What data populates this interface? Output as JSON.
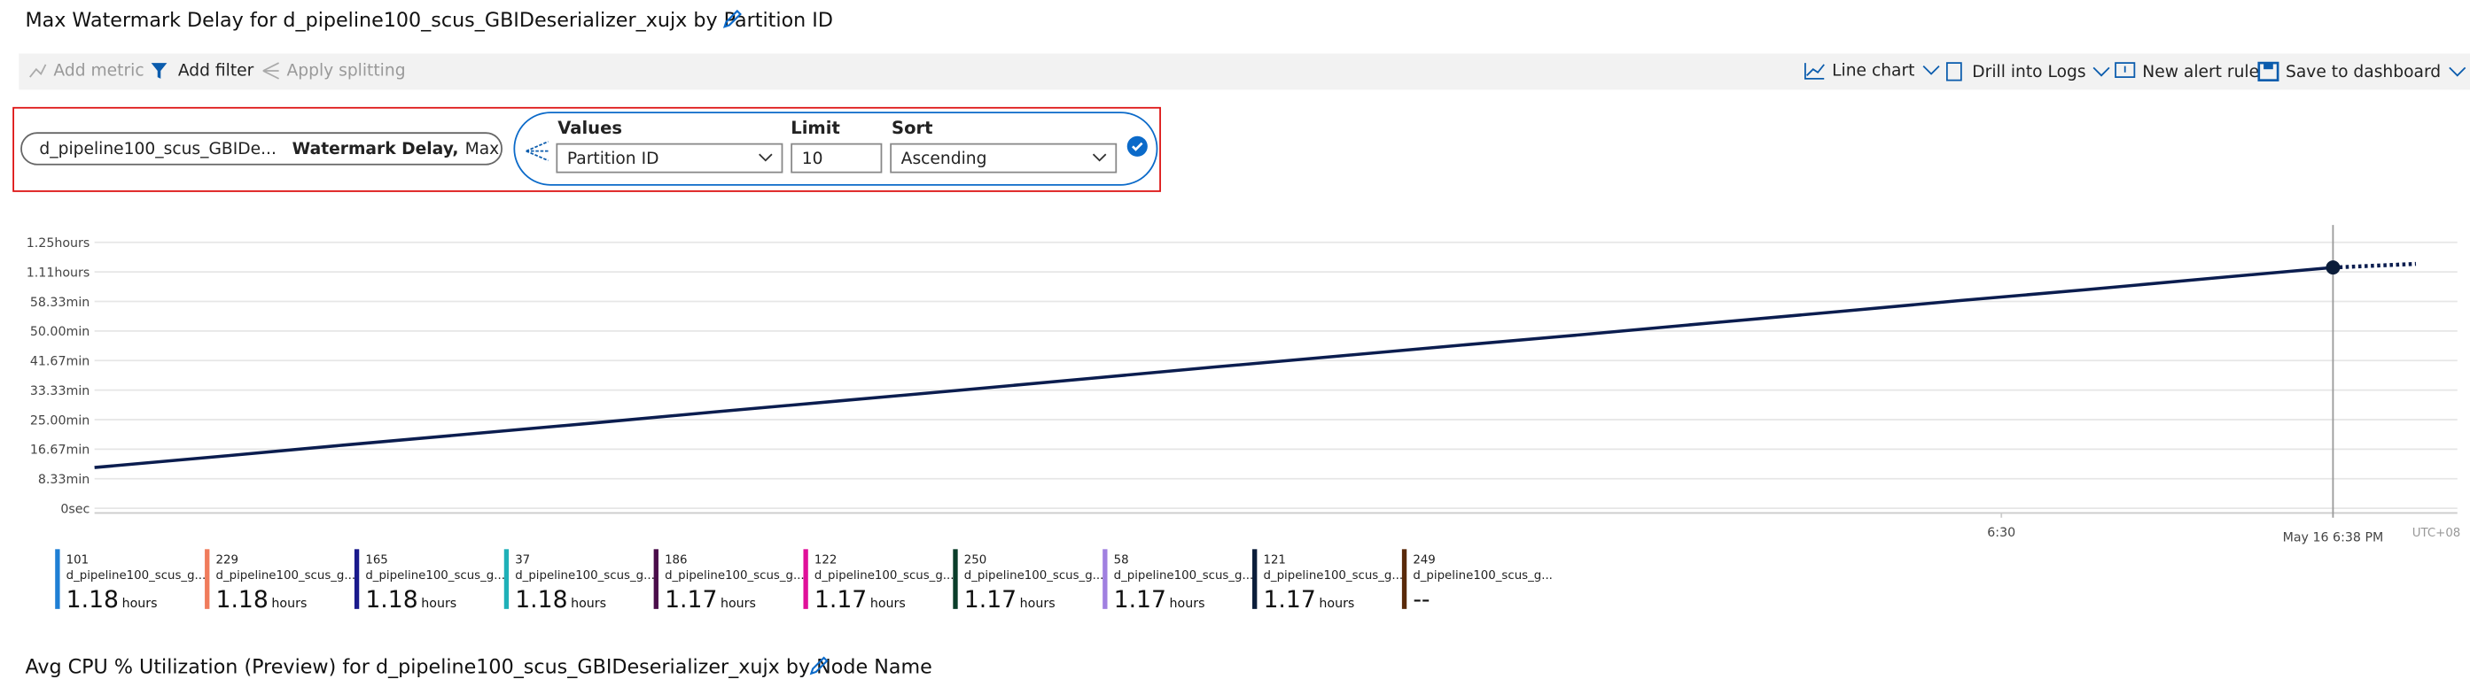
{
  "title": "Max Watermark Delay for d_pipeline100_scus_GBIDeserializer_xujx by Partition ID",
  "toolbar": {
    "left": [
      "Add metric",
      "Add filter",
      "Apply splitting"
    ],
    "right": [
      "Line chart",
      "Drill into Logs",
      "New alert rule",
      "Save to dashboard"
    ]
  },
  "metric": {
    "resource": "d_pipeline100_scus_GBIDe...",
    "name": "Watermark Delay,",
    "aggregation": "Max"
  },
  "splitting": {
    "values_label": "Values",
    "values": "Partition ID",
    "limit_label": "Limit",
    "limit": "10",
    "sort_label": "Sort",
    "sort": "Ascending"
  },
  "chart_data": {
    "type": "line",
    "x": [
      "5:44",
      "5:47",
      "5:50",
      "5:53",
      "5:56",
      "5:59",
      "6:02",
      "6:05",
      "6:08",
      "6:11",
      "6:14",
      "6:17",
      "6:20",
      "6:23",
      "6:26",
      "6:29",
      "6:32",
      "6:35",
      "6:38",
      "6:40"
    ],
    "series": [
      {
        "color": "#0b1d4f",
        "style": "solid",
        "values": [
          11.5,
          14.6,
          17.8,
          20.9,
          24.0,
          27.2,
          30.3,
          33.4,
          36.6,
          39.8,
          42.9,
          46.0,
          49.1,
          52.3,
          55.4,
          58.6,
          61.6,
          64.8,
          67.9,
          null
        ]
      },
      {
        "color": "#0b1d4f",
        "style": "dotted",
        "values": [
          null,
          null,
          null,
          null,
          null,
          null,
          null,
          null,
          null,
          null,
          null,
          null,
          null,
          null,
          null,
          null,
          null,
          null,
          67.9,
          68.9
        ]
      }
    ],
    "xlim": [
      "5:44",
      "6:41"
    ],
    "xticks": [
      "6:30"
    ],
    "ylim": [
      0,
      75
    ],
    "yticks": [
      {
        "value": 0,
        "label": "0sec"
      },
      {
        "value": 8.33,
        "label": "8.33min"
      },
      {
        "value": 16.67,
        "label": "16.67min"
      },
      {
        "value": 25,
        "label": "25.00min"
      },
      {
        "value": 33.33,
        "label": "33.33min"
      },
      {
        "value": 41.67,
        "label": "41.67min"
      },
      {
        "value": 50,
        "label": "50.00min"
      },
      {
        "value": 58.33,
        "label": "58.33min"
      },
      {
        "value": 66.67,
        "label": "1.11hours"
      },
      {
        "value": 75,
        "label": "1.25hours"
      }
    ],
    "grid": true,
    "cursor": {
      "x": "6:38",
      "label": "May 16 6:38 PM"
    },
    "timezone": "UTC+08",
    "legend": [
      {
        "id": "101",
        "resource": "d_pipeline100_scus_g...",
        "value": "1.18",
        "unit": "hours",
        "color": "#1f7fd4"
      },
      {
        "id": "229",
        "resource": "d_pipeline100_scus_g...",
        "value": "1.18",
        "unit": "hours",
        "color": "#f07c5c"
      },
      {
        "id": "165",
        "resource": "d_pipeline100_scus_g...",
        "value": "1.18",
        "unit": "hours",
        "color": "#1a1a8c"
      },
      {
        "id": "37",
        "resource": "d_pipeline100_scus_g...",
        "value": "1.18",
        "unit": "hours",
        "color": "#1fb0b8"
      },
      {
        "id": "186",
        "resource": "d_pipeline100_scus_g...",
        "value": "1.17",
        "unit": "hours",
        "color": "#4a0d4a"
      },
      {
        "id": "122",
        "resource": "d_pipeline100_scus_g...",
        "value": "1.17",
        "unit": "hours",
        "color": "#e0109a"
      },
      {
        "id": "250",
        "resource": "d_pipeline100_scus_g...",
        "value": "1.17",
        "unit": "hours",
        "color": "#0a3d2a"
      },
      {
        "id": "58",
        "resource": "d_pipeline100_scus_g...",
        "value": "1.17",
        "unit": "hours",
        "color": "#a080e0"
      },
      {
        "id": "121",
        "resource": "d_pipeline100_scus_g...",
        "value": "1.17",
        "unit": "hours",
        "color": "#0b1d3a"
      },
      {
        "id": "249",
        "resource": "d_pipeline100_scus_g...",
        "value": "--",
        "unit": null,
        "color": "#5a2a0a"
      }
    ]
  },
  "next_title": "Avg CPU % Utilization (Preview) for d_pipeline100_scus_GBIDeserializer_xujx by Node Name"
}
